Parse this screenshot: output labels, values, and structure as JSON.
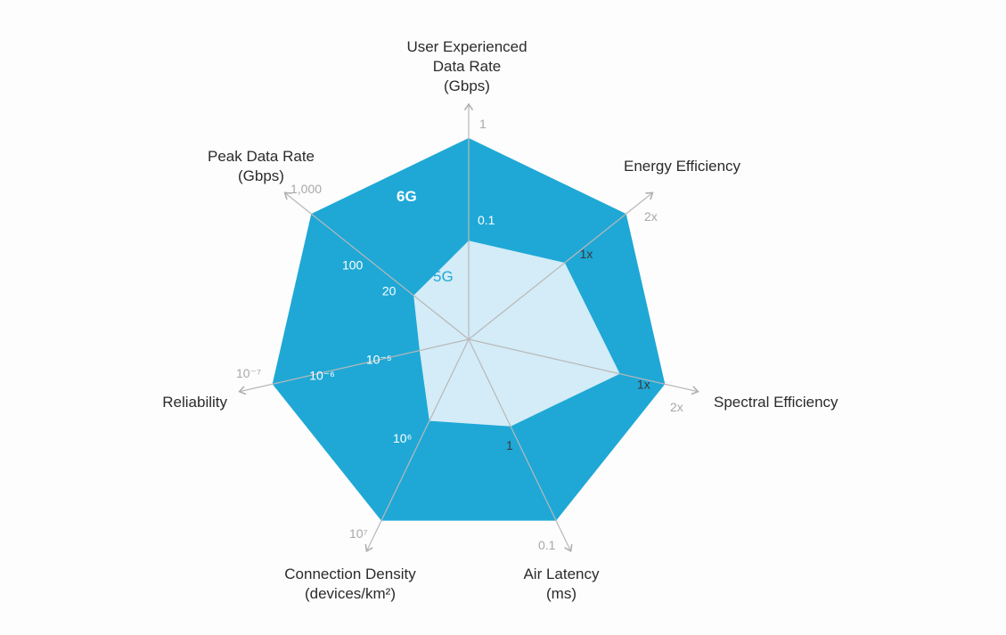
{
  "chart_data": {
    "type": "radar",
    "axes": [
      {
        "label_lines": [
          "User Experienced",
          "Data Rate",
          "(Gbps)"
        ],
        "ticks": [
          "0.1",
          "1"
        ],
        "outer_tick": "1",
        "values": {
          "5G": 0.1,
          "6G": 1
        }
      },
      {
        "label_lines": [
          "Energy Efficiency"
        ],
        "ticks": [
          "1x",
          "2x"
        ],
        "outer_tick": "2x",
        "values": {
          "5G": "1x",
          "6G": "2x"
        }
      },
      {
        "label_lines": [
          "Spectral Efficiency"
        ],
        "ticks": [
          "1x",
          "2x"
        ],
        "outer_tick": "2x",
        "values": {
          "5G": "1x",
          "6G": "2x"
        }
      },
      {
        "label_lines": [
          "Air Latency",
          "(ms)"
        ],
        "ticks": [
          "1",
          "0.1"
        ],
        "outer_tick": "0.1",
        "values": {
          "5G": 1,
          "6G": 0.1
        }
      },
      {
        "label_lines": [
          "Connection Density",
          "(devices/km²)"
        ],
        "ticks": [
          "10⁶",
          "10⁷"
        ],
        "outer_tick": "10⁷",
        "values": {
          "5G": "10^6",
          "6G": "10^7"
        }
      },
      {
        "label_lines": [
          "Reliability"
        ],
        "ticks": [
          "10⁻⁵",
          "10⁻⁶",
          "10⁻⁷"
        ],
        "outer_tick": "10⁻⁷",
        "values": {
          "5G": "10^-5",
          "6G": "10^-7"
        }
      },
      {
        "label_lines": [
          "Peak Data Rate",
          "(Gbps)"
        ],
        "ticks": [
          "20",
          "100",
          "1,000"
        ],
        "outer_tick": "1,000",
        "values": {
          "5G": 20,
          "6G": 1000
        }
      }
    ],
    "series": [
      {
        "name": "6G",
        "color": "#1fa8d6",
        "levels": [
          1.0,
          1.0,
          1.0,
          1.0,
          1.0,
          1.0,
          1.0
        ]
      },
      {
        "name": "5G",
        "color": "#d3ecf7",
        "levels": [
          0.49,
          0.61,
          0.77,
          0.48,
          0.45,
          0.25,
          0.35
        ]
      }
    ],
    "inner_ticks": [
      {
        "axis": 0,
        "text": "0.1",
        "level": 0.58,
        "style": "white"
      },
      {
        "axis": 1,
        "text": "1x",
        "level": 0.66,
        "style": "dark"
      },
      {
        "axis": 2,
        "text": "1x",
        "level": 0.83,
        "style": "dark"
      },
      {
        "axis": 3,
        "text": "1",
        "level": 0.53,
        "style": "dark"
      },
      {
        "axis": 4,
        "text": "10⁶",
        "level": 0.52,
        "style": "white"
      },
      {
        "axis": 5,
        "text": "10⁻⁵",
        "level": 0.35,
        "style": "white"
      },
      {
        "axis": 5,
        "text": "10⁻⁶",
        "level": 0.63,
        "style": "white"
      },
      {
        "axis": 6,
        "text": "20",
        "level": 0.38,
        "style": "white"
      },
      {
        "axis": 6,
        "text": "100",
        "level": 0.6,
        "style": "white"
      }
    ],
    "series_labels": {
      "6G": "6G",
      "5G": "5G"
    },
    "grid": "dashed circles"
  }
}
